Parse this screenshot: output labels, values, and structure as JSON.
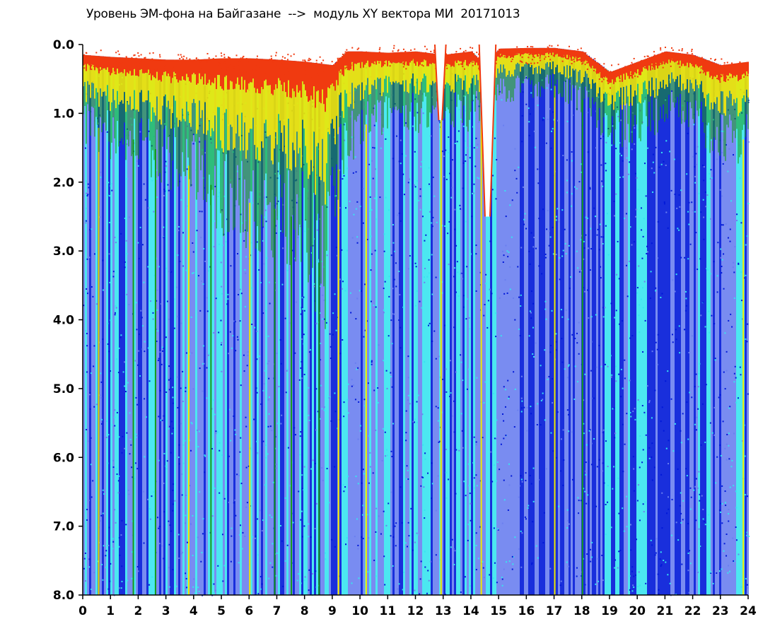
{
  "chart_data": {
    "type": "heatmap",
    "title": "Уровень ЭМ-фона на Байгазане  -->  модуль XY вектора МИ  20171013",
    "xlabel": "",
    "ylabel": "",
    "xlim": [
      0,
      24
    ],
    "ylim": [
      8.0,
      0.0
    ],
    "x_ticks": [
      "0",
      "1",
      "2",
      "3",
      "4",
      "5",
      "6",
      "7",
      "8",
      "9",
      "10",
      "11",
      "12",
      "13",
      "14",
      "15",
      "16",
      "17",
      "18",
      "19",
      "20",
      "21",
      "22",
      "23",
      "24"
    ],
    "y_ticks": [
      "0.0",
      "1.0",
      "2.0",
      "3.0",
      "4.0",
      "5.0",
      "6.0",
      "7.0",
      "8.0"
    ],
    "colorscale": [
      "#0018d8",
      "#6a7ff0",
      "#38e4f0",
      "#159a1a",
      "#f0e800",
      "#f03a10"
    ],
    "grid": false,
    "legend": "none",
    "band_upper_edge": [
      {
        "x": 0.0,
        "y": 0.15
      },
      {
        "x": 1.0,
        "y": 0.18
      },
      {
        "x": 2.0,
        "y": 0.2
      },
      {
        "x": 3.0,
        "y": 0.22
      },
      {
        "x": 4.0,
        "y": 0.22
      },
      {
        "x": 5.0,
        "y": 0.2
      },
      {
        "x": 6.0,
        "y": 0.2
      },
      {
        "x": 7.0,
        "y": 0.22
      },
      {
        "x": 8.0,
        "y": 0.25
      },
      {
        "x": 9.0,
        "y": 0.3
      },
      {
        "x": 9.5,
        "y": 0.1
      },
      {
        "x": 10.0,
        "y": 0.1
      },
      {
        "x": 11.0,
        "y": 0.12
      },
      {
        "x": 12.0,
        "y": 0.1
      },
      {
        "x": 13.0,
        "y": 0.15
      },
      {
        "x": 14.0,
        "y": 0.1
      },
      {
        "x": 14.5,
        "y": 0.3
      },
      {
        "x": 15.0,
        "y": 0.06
      },
      {
        "x": 16.0,
        "y": 0.05
      },
      {
        "x": 17.0,
        "y": 0.05
      },
      {
        "x": 18.0,
        "y": 0.1
      },
      {
        "x": 19.0,
        "y": 0.4
      },
      {
        "x": 20.0,
        "y": 0.25
      },
      {
        "x": 21.0,
        "y": 0.1
      },
      {
        "x": 22.0,
        "y": 0.15
      },
      {
        "x": 23.0,
        "y": 0.3
      },
      {
        "x": 24.0,
        "y": 0.25
      }
    ],
    "warm_band_depth": [
      {
        "x": 0.0,
        "y": 1.1
      },
      {
        "x": 1.0,
        "y": 1.3
      },
      {
        "x": 2.0,
        "y": 1.4
      },
      {
        "x": 3.0,
        "y": 1.6
      },
      {
        "x": 4.0,
        "y": 1.8
      },
      {
        "x": 5.0,
        "y": 2.2
      },
      {
        "x": 6.0,
        "y": 2.3
      },
      {
        "x": 7.0,
        "y": 2.4
      },
      {
        "x": 8.0,
        "y": 2.6
      },
      {
        "x": 8.7,
        "y": 3.4
      },
      {
        "x": 9.3,
        "y": 1.5
      },
      {
        "x": 10.0,
        "y": 1.2
      },
      {
        "x": 11.0,
        "y": 1.0
      },
      {
        "x": 12.0,
        "y": 1.0
      },
      {
        "x": 13.0,
        "y": 0.9
      },
      {
        "x": 14.0,
        "y": 1.0
      },
      {
        "x": 15.0,
        "y": 0.7
      },
      {
        "x": 16.0,
        "y": 0.6
      },
      {
        "x": 17.0,
        "y": 0.6
      },
      {
        "x": 18.0,
        "y": 0.8
      },
      {
        "x": 19.0,
        "y": 1.2
      },
      {
        "x": 20.0,
        "y": 1.2
      },
      {
        "x": 21.0,
        "y": 0.9
      },
      {
        "x": 22.0,
        "y": 1.1
      },
      {
        "x": 23.0,
        "y": 1.3
      },
      {
        "x": 24.0,
        "y": 1.4
      }
    ],
    "gap_bites": [
      {
        "x_start": 12.7,
        "x_end": 13.1,
        "y_max": 1.1
      },
      {
        "x_start": 14.3,
        "x_end": 14.9,
        "y_max": 2.5
      }
    ],
    "vertical_streaks": [
      {
        "x": 0.55,
        "color": "#f0e800"
      },
      {
        "x": 1.8,
        "color": "#159a1a"
      },
      {
        "x": 2.6,
        "color": "#159a1a"
      },
      {
        "x": 3.8,
        "color": "#f0e800"
      },
      {
        "x": 4.6,
        "color": "#159a1a"
      },
      {
        "x": 6.0,
        "color": "#f0e800"
      },
      {
        "x": 6.9,
        "color": "#159a1a"
      },
      {
        "x": 7.5,
        "color": "#159a1a"
      },
      {
        "x": 8.5,
        "color": "#159a1a"
      },
      {
        "x": 9.2,
        "color": "#f0e800"
      },
      {
        "x": 10.2,
        "color": "#f0e800"
      },
      {
        "x": 12.9,
        "color": "#f0e800"
      },
      {
        "x": 14.35,
        "color": "#f0e800"
      },
      {
        "x": 17.0,
        "color": "#f0e800"
      },
      {
        "x": 18.0,
        "color": "#159a1a"
      },
      {
        "x": 23.8,
        "color": "#f0e800"
      }
    ]
  }
}
